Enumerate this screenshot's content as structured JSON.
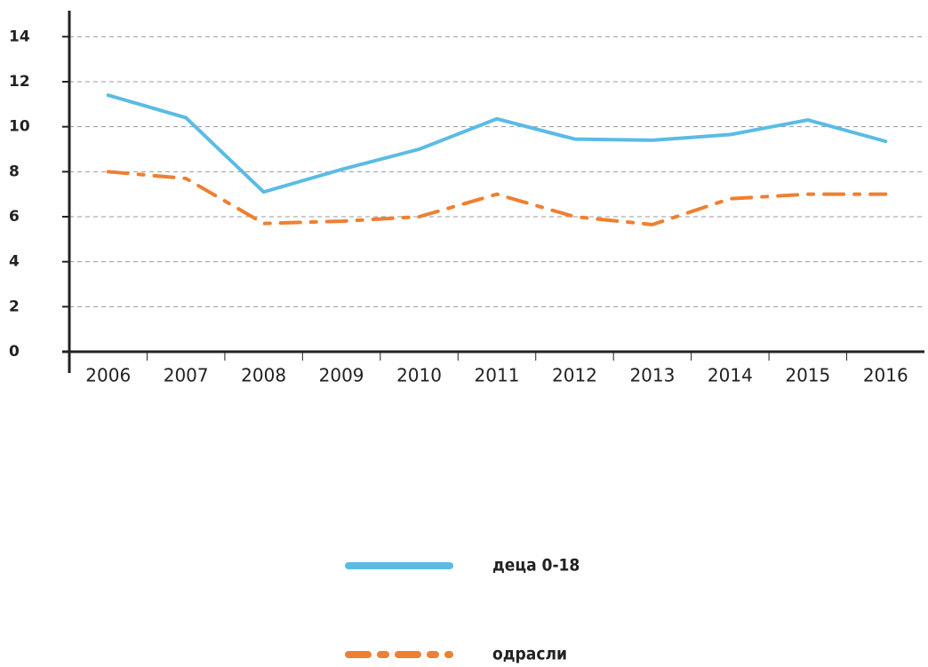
{
  "chart_data": {
    "type": "line",
    "categories": [
      "2006",
      "2007",
      "2008",
      "2009",
      "2010",
      "2011",
      "2012",
      "2013",
      "2014",
      "2015",
      "2016"
    ],
    "series": [
      {
        "name": "деца 0-18",
        "color": "#5bbbe6",
        "dash": "solid",
        "values": [
          11.4,
          10.4,
          7.1,
          8.1,
          9.0,
          10.35,
          9.45,
          9.4,
          9.65,
          10.3,
          9.35
        ]
      },
      {
        "name": "одрасли",
        "color": "#ef7f32",
        "dash": "dashdot",
        "values": [
          8.0,
          7.7,
          5.7,
          5.8,
          6.0,
          7.0,
          6.0,
          5.65,
          6.8,
          7.0,
          7.0
        ]
      }
    ],
    "ylim": [
      0,
      15
    ],
    "yticks": [
      0,
      2,
      4,
      6,
      8,
      10,
      12,
      14
    ],
    "grid": true
  }
}
